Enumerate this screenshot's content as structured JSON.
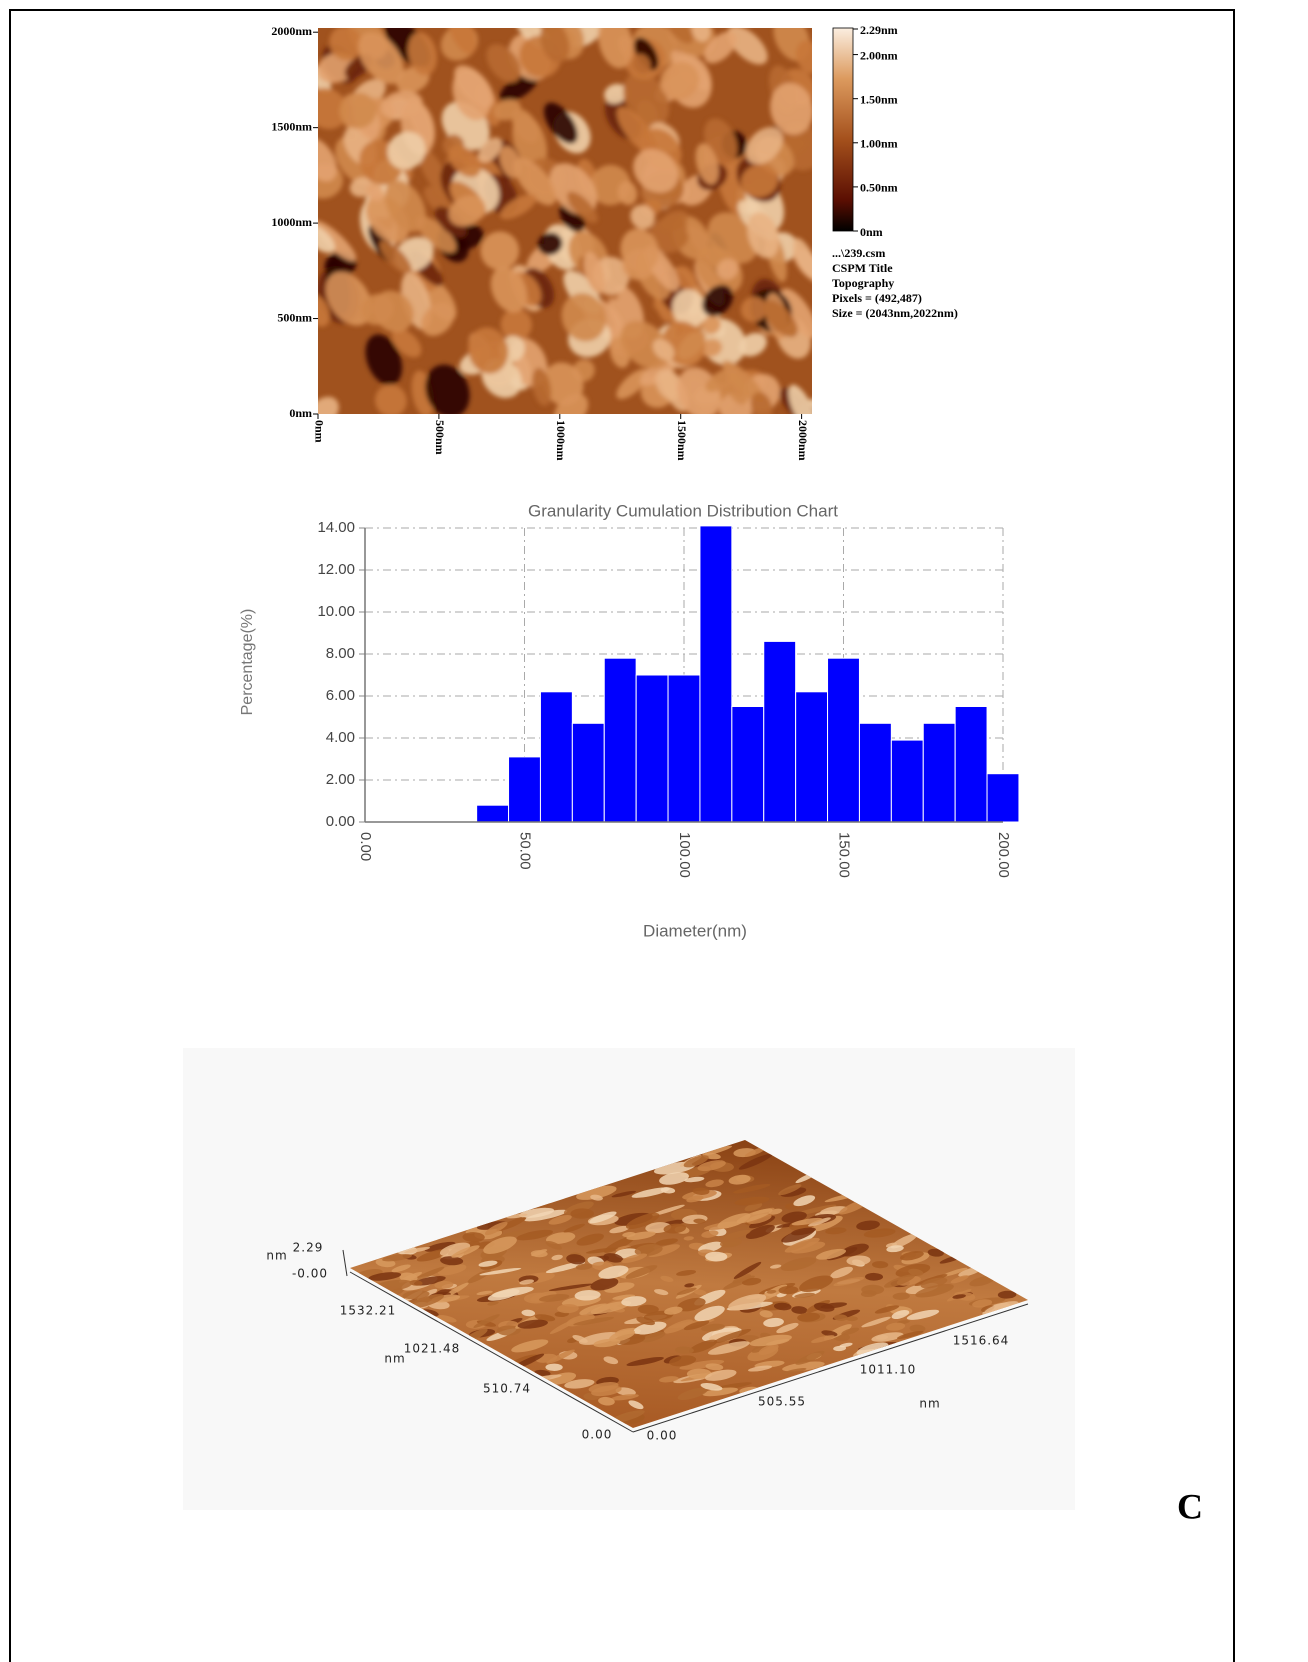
{
  "panel_label": "C",
  "topography": {
    "xlim": [
      0,
      2043
    ],
    "ylim": [
      0,
      2022
    ],
    "xticks": [
      {
        "value": 0,
        "label": "0nm"
      },
      {
        "value": 500,
        "label": "500nm"
      },
      {
        "value": 1000,
        "label": "1000nm"
      },
      {
        "value": 1500,
        "label": "1500nm"
      },
      {
        "value": 2000,
        "label": "2000nm"
      }
    ],
    "yticks": [
      {
        "value": 0,
        "label": "0nm"
      },
      {
        "value": 500,
        "label": "500nm"
      },
      {
        "value": 1000,
        "label": "1000nm"
      },
      {
        "value": 1500,
        "label": "1500nm"
      },
      {
        "value": 2000,
        "label": "2000nm"
      }
    ],
    "colorbar": {
      "lim": [
        0,
        2.29
      ],
      "ticks": [
        {
          "value": 0,
          "label": "0nm"
        },
        {
          "value": 0.5,
          "label": "0.50nm"
        },
        {
          "value": 1,
          "label": "1.00nm"
        },
        {
          "value": 1.5,
          "label": "1.50nm"
        },
        {
          "value": 2,
          "label": "2.00nm"
        },
        {
          "value": 2.29,
          "label": "2.29nm"
        }
      ]
    },
    "info": [
      "...\\239.csm",
      "CSPM Title",
      "Topography",
      "Pixels = (492,487)",
      "Size = (2043nm,2022nm)"
    ]
  },
  "chart_data": {
    "type": "histogram",
    "title": "Granularity Cumulation Distribution  Chart",
    "x_label": "Diameter(nm)",
    "y_label": "Percentage(%)",
    "bins": [
      35,
      45,
      55,
      65,
      75,
      85,
      95,
      105,
      115,
      125,
      135,
      145,
      155,
      165,
      175,
      185,
      195,
      205
    ],
    "values": [
      0.8,
      3.1,
      6.2,
      4.7,
      7.8,
      7.0,
      7.0,
      14.1,
      5.5,
      8.6,
      6.2,
      7.8,
      4.7,
      3.9,
      4.7,
      5.5,
      2.3
    ],
    "color": "#0000ff",
    "xlim": [
      0,
      200
    ],
    "ylim": [
      0,
      14
    ],
    "xticks": [
      {
        "value": 0,
        "label": "0.00"
      },
      {
        "value": 50,
        "label": "50.00"
      },
      {
        "value": 100,
        "label": "100.00"
      },
      {
        "value": 150,
        "label": "150.00"
      },
      {
        "value": 200,
        "label": "200.00"
      }
    ],
    "yticks": [
      {
        "value": 0,
        "label": "0.00"
      },
      {
        "value": 2,
        "label": "2.00"
      },
      {
        "value": 4,
        "label": "4.00"
      },
      {
        "value": 6,
        "label": "6.00"
      },
      {
        "value": 8,
        "label": "8.00"
      },
      {
        "value": 10,
        "label": "10.00"
      },
      {
        "value": 12,
        "label": "12.00"
      },
      {
        "value": 14,
        "label": "14.00"
      }
    ],
    "grid": true
  },
  "surface_3d": {
    "z_unit": "nm",
    "z_labels": [
      "2.29",
      "-0.00"
    ],
    "y_labels": [
      "1532.21",
      "1021.48",
      "510.74",
      "0.00"
    ],
    "y_unit": "nm",
    "x_labels": [
      "0.00",
      "505.55",
      "1011.10",
      "1516.64"
    ],
    "x_unit": "nm"
  }
}
